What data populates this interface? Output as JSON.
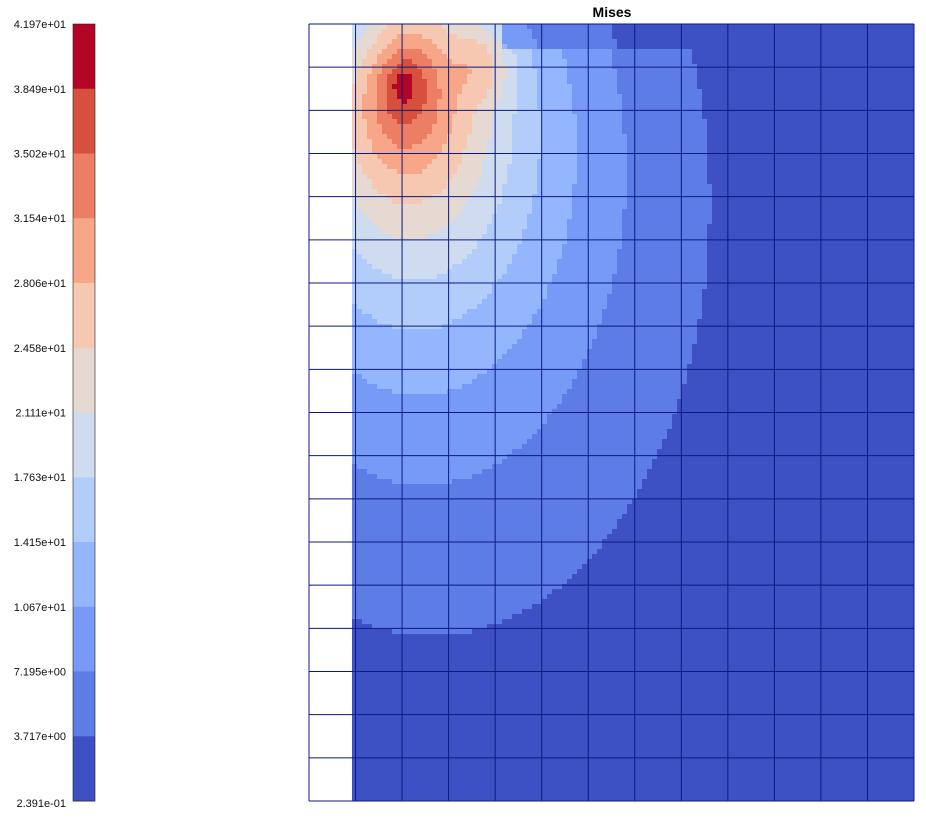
{
  "chart_data": {
    "type": "heatmap",
    "title": "Mises",
    "colorbar": {
      "tick_labels": [
        "4.197e+01",
        "3.849e+01",
        "3.502e+01",
        "3.154e+01",
        "2.806e+01",
        "2.458e+01",
        "2.111e+01",
        "1.763e+01",
        "1.415e+01",
        "1.067e+01",
        "7.195e+00",
        "3.717e+00",
        "2.391e-01"
      ],
      "tick_values": [
        41.97,
        38.49,
        35.02,
        31.54,
        28.06,
        24.58,
        21.11,
        17.63,
        14.15,
        10.67,
        7.195,
        3.717,
        0.2391
      ],
      "min": 0.2391,
      "max": 41.97,
      "levels": 12,
      "colors_high_to_low": [
        "#b40426",
        "#d6503d",
        "#ec7f63",
        "#f7a788",
        "#f6c8b2",
        "#e6d9d1",
        "#cfdbef",
        "#b3cdfa",
        "#94b6ff",
        "#779af7",
        "#5d7ce6",
        "#3e51c4"
      ]
    },
    "mesh": {
      "columns": 13,
      "rows": 18,
      "empty_columns": 1,
      "line_color": "#0a1a80"
    },
    "field": {
      "peak_x_fraction": 0.09,
      "peak_y_fraction": 0.075,
      "peak_value": 41.97,
      "min_value": 0.2391
    }
  }
}
